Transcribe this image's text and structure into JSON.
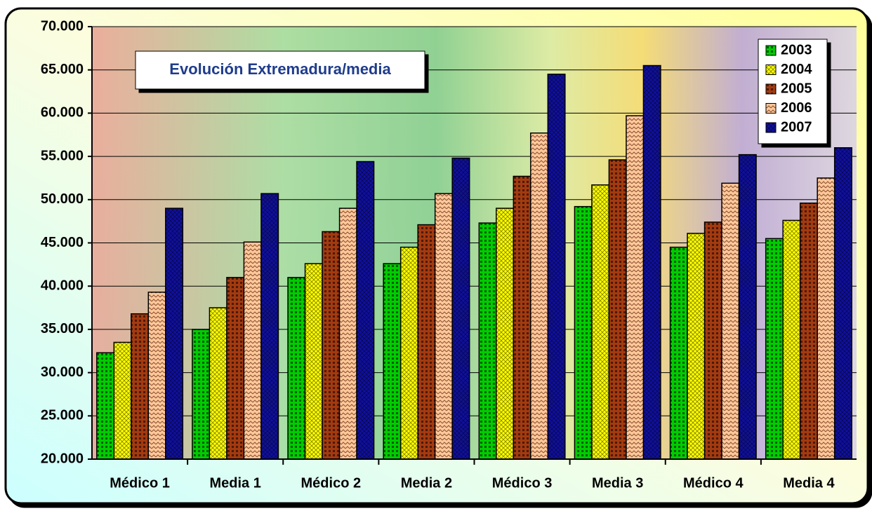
{
  "chart_data": {
    "type": "bar",
    "title": "Evolución Extremadura/media",
    "categories": [
      "Médico 1",
      "Media 1",
      "Médico 2",
      "Media 2",
      "Médico 3",
      "Media 3",
      "Médico 4",
      "Media 4"
    ],
    "series": [
      {
        "name": "2003",
        "color": "#00cc00",
        "values": [
          32300,
          35000,
          41000,
          42600,
          47300,
          49200,
          44500,
          45500
        ]
      },
      {
        "name": "2004",
        "color": "#ffff00",
        "values": [
          33500,
          37500,
          42600,
          44500,
          49000,
          51700,
          46100,
          47600
        ]
      },
      {
        "name": "2005",
        "color": "#a33a10",
        "values": [
          36800,
          41000,
          46300,
          47100,
          52700,
          54600,
          47400,
          49600
        ]
      },
      {
        "name": "2006",
        "color": "#ffc89a",
        "values": [
          39300,
          45100,
          49000,
          50700,
          57700,
          59700,
          51900,
          52500
        ]
      },
      {
        "name": "2007",
        "color": "#1010a0",
        "values": [
          49000,
          50700,
          54400,
          54800,
          64500,
          65500,
          55200,
          56000
        ]
      }
    ],
    "ylim": [
      20000,
      70000
    ],
    "yticks": [
      {
        "value": 20000,
        "label": "20.000"
      },
      {
        "value": 25000,
        "label": "25.000"
      },
      {
        "value": 30000,
        "label": "30.000"
      },
      {
        "value": 35000,
        "label": "35.000"
      },
      {
        "value": 40000,
        "label": "40.000"
      },
      {
        "value": 45000,
        "label": "45.000"
      },
      {
        "value": 50000,
        "label": "50.000"
      },
      {
        "value": 55000,
        "label": "55.000"
      },
      {
        "value": 60000,
        "label": "60.000"
      },
      {
        "value": 65000,
        "label": "65.000"
      },
      {
        "value": 70000,
        "label": "70.000"
      }
    ],
    "grid": true,
    "legend": "top-right"
  }
}
